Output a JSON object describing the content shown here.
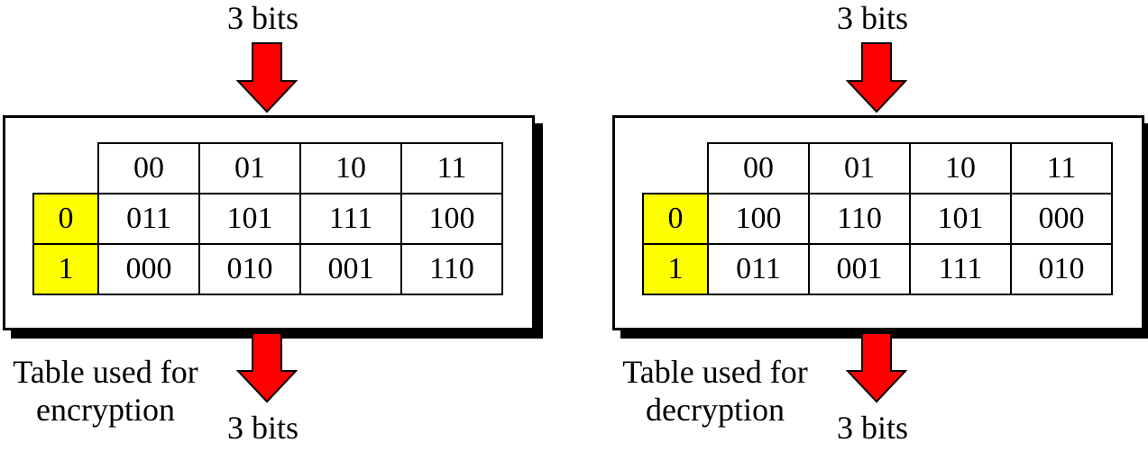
{
  "panels": [
    {
      "top_label": "3 bits",
      "bottom_label": "3 bits",
      "caption": "Table used for encryption",
      "col_headers": [
        "00",
        "01",
        "10",
        "11"
      ],
      "row_headers": [
        "0",
        "1"
      ],
      "rows": [
        [
          "011",
          "101",
          "111",
          "100"
        ],
        [
          "000",
          "010",
          "001",
          "110"
        ]
      ]
    },
    {
      "top_label": "3 bits",
      "bottom_label": "3 bits",
      "caption": "Table used for decryption",
      "col_headers": [
        "00",
        "01",
        "10",
        "11"
      ],
      "row_headers": [
        "0",
        "1"
      ],
      "rows": [
        [
          "100",
          "110",
          "101",
          "000"
        ],
        [
          "011",
          "001",
          "111",
          "010"
        ]
      ]
    }
  ],
  "colors": {
    "header_fill": "#ffff00",
    "arrow_fill": "#ff0000",
    "border": "#000000"
  }
}
